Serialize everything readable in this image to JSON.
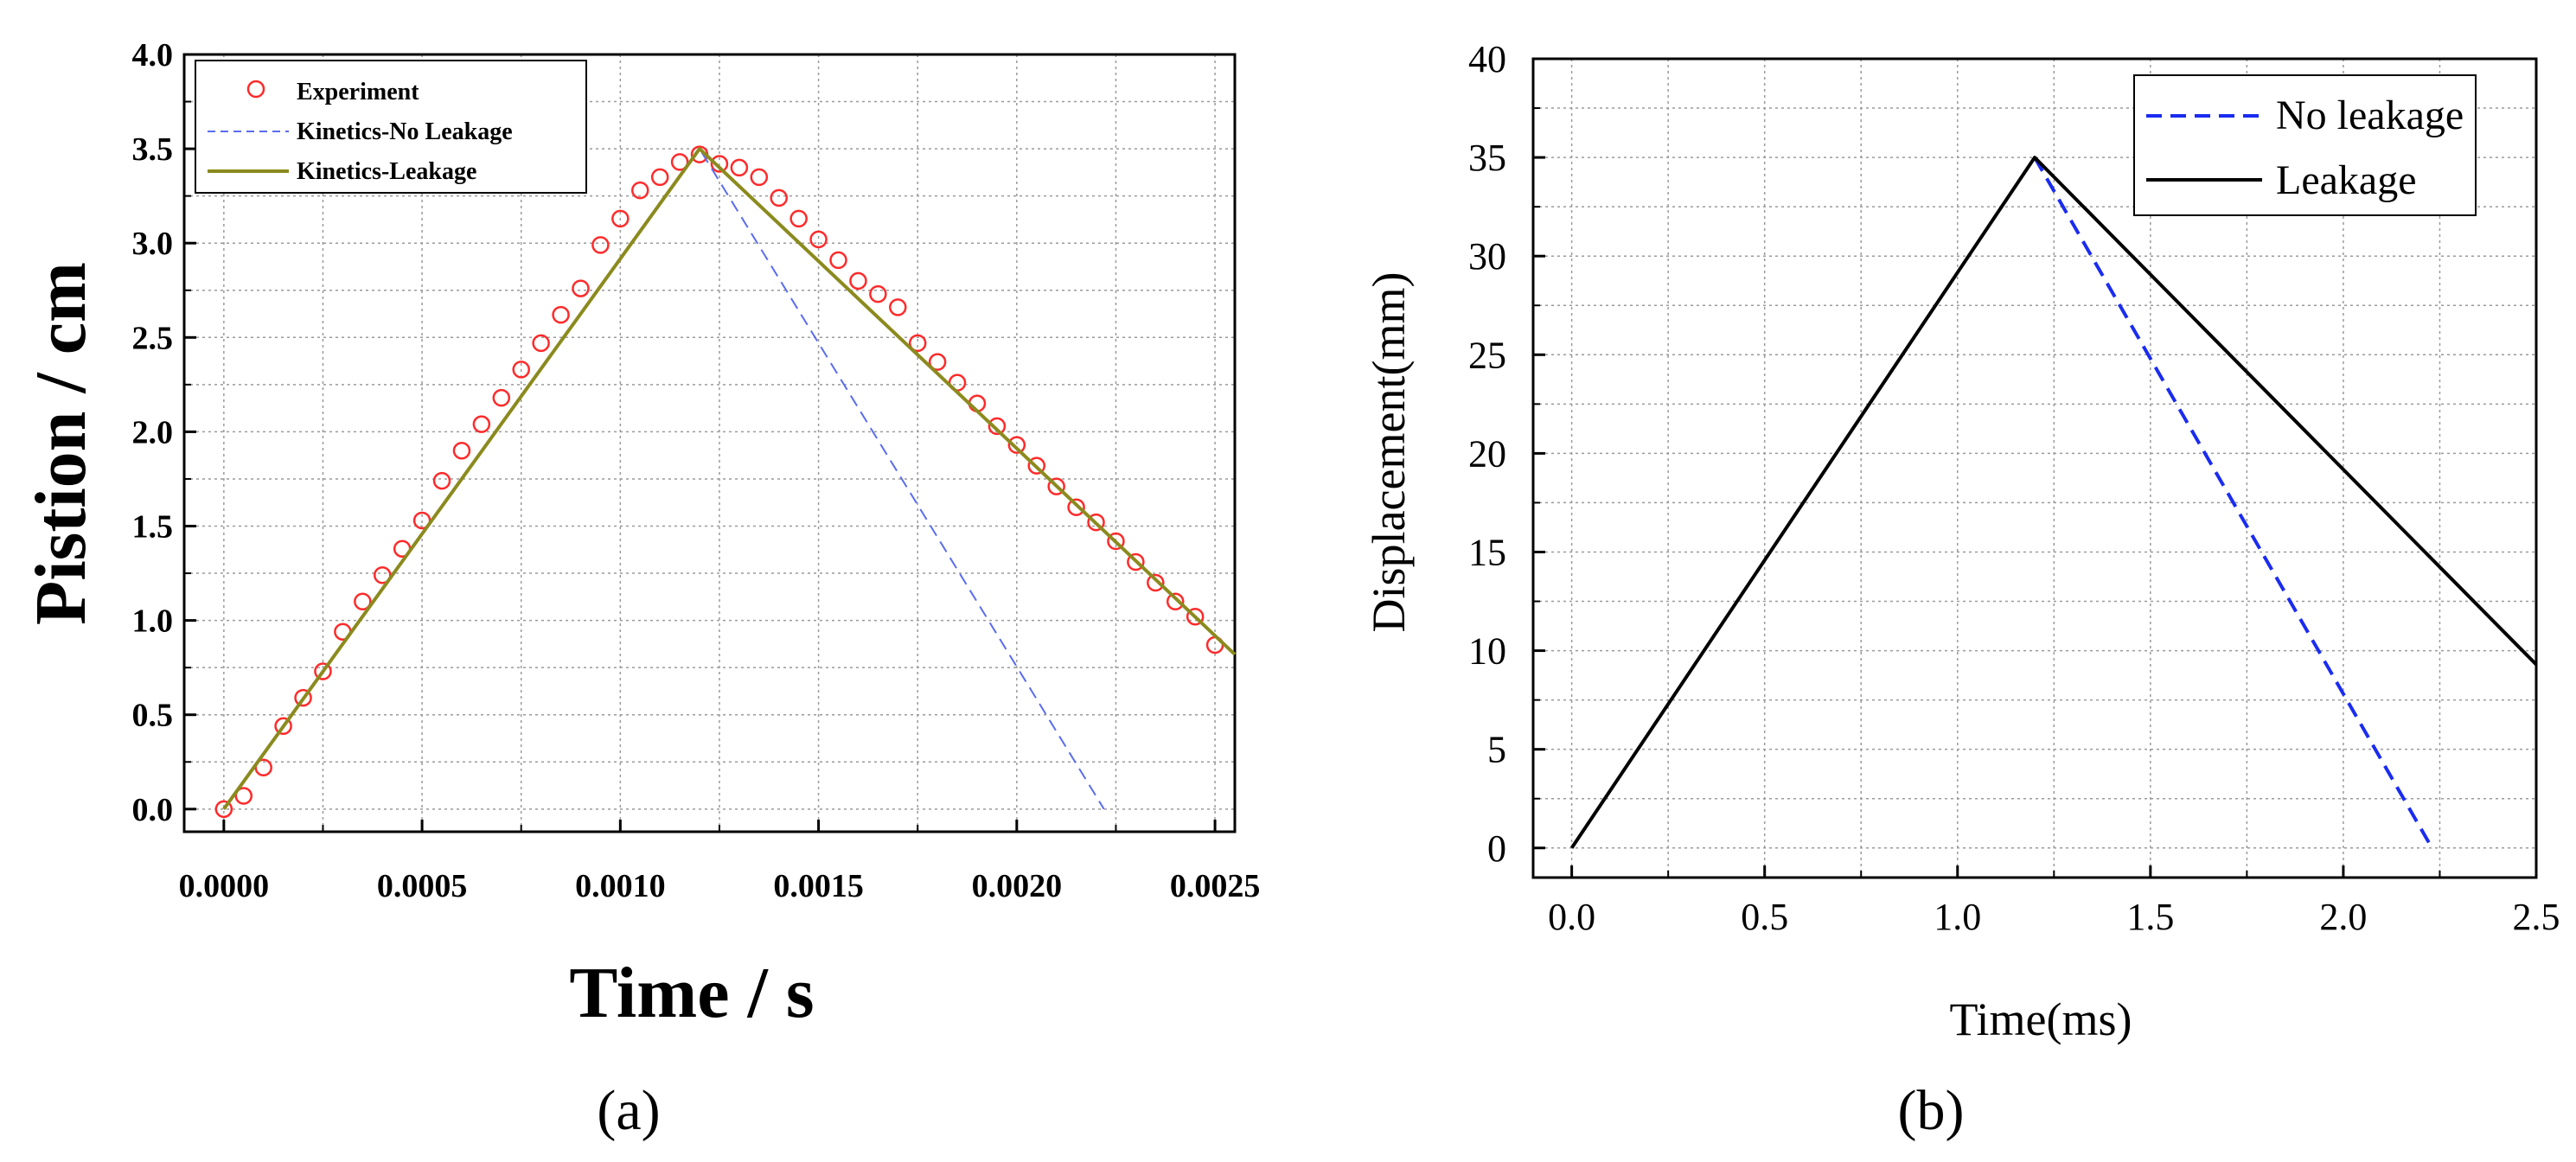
{
  "chart_data": [
    {
      "type": "line",
      "panel_label": "(a)",
      "xlabel": "Time / s",
      "ylabel": "Pistion / cm",
      "xlim": [
        -0.0001,
        0.00255
      ],
      "ylim": [
        -0.12,
        4.0
      ],
      "x_ticks": [
        0,
        0.0005,
        0.001,
        0.0015,
        0.002,
        0.0025
      ],
      "x_tick_labels": [
        "0.0000",
        "0.0005",
        "0.0010",
        "0.0015",
        "0.0020",
        "0.0025"
      ],
      "y_ticks": [
        0,
        0.5,
        1,
        1.5,
        2,
        2.5,
        3,
        3.5,
        4
      ],
      "y_tick_labels": [
        "0.0",
        "0.5",
        "1.0",
        "1.5",
        "2.0",
        "2.5",
        "3.0",
        "3.5",
        "4.0"
      ],
      "grid": true,
      "legend_position": "top-left",
      "series": [
        {
          "name": "Experiment",
          "style": "circles",
          "color": "#ff2a2a",
          "x": [
            0,
            5e-05,
            0.0001,
            0.00015,
            0.0002,
            0.00025,
            0.0003,
            0.00035,
            0.0004,
            0.00045,
            0.0005,
            0.00055,
            0.0006,
            0.00065,
            0.0007,
            0.00075,
            0.0008,
            0.00085,
            0.0009,
            0.00095,
            0.001,
            0.00105,
            0.0011,
            0.00115,
            0.0012,
            0.00125,
            0.0013,
            0.00135,
            0.0014,
            0.00145,
            0.0015,
            0.00155,
            0.0016,
            0.00165,
            0.0017,
            0.00175,
            0.0018,
            0.00185,
            0.0019,
            0.00195,
            0.002,
            0.00205,
            0.0021,
            0.00215,
            0.0022,
            0.00225,
            0.0023,
            0.00235,
            0.0024,
            0.00245,
            0.0025
          ],
          "y": [
            0.0,
            0.07,
            0.22,
            0.44,
            0.59,
            0.73,
            0.94,
            1.1,
            1.24,
            1.38,
            1.53,
            1.74,
            1.9,
            2.04,
            2.18,
            2.33,
            2.47,
            2.62,
            2.76,
            2.99,
            3.13,
            3.28,
            3.35,
            3.43,
            3.47,
            3.42,
            3.4,
            3.35,
            3.24,
            3.13,
            3.02,
            2.91,
            2.8,
            2.73,
            2.66,
            2.47,
            2.37,
            2.26,
            2.15,
            2.03,
            1.93,
            1.82,
            1.71,
            1.6,
            1.52,
            1.42,
            1.31,
            1.2,
            1.1,
            1.02,
            0.87
          ]
        },
        {
          "name": "Kinetics-No Leakage",
          "style": "dashed",
          "color": "#5a6cf0",
          "x": [
            0,
            0.0012,
            0.00222
          ],
          "y": [
            0.0,
            3.5,
            0.0
          ]
        },
        {
          "name": "Kinetics-Leakage",
          "style": "solid",
          "color": "#8b8a1e",
          "x": [
            0,
            0.0012,
            0.00255
          ],
          "y": [
            0.0,
            3.5,
            0.82
          ]
        }
      ]
    },
    {
      "type": "line",
      "panel_label": "(b)",
      "xlabel": "Time(ms)",
      "ylabel": "Displacement(mm)",
      "xlim": [
        -0.1,
        2.5
      ],
      "ylim": [
        -1.5,
        40
      ],
      "x_ticks": [
        0,
        0.5,
        1,
        1.5,
        2,
        2.5
      ],
      "x_tick_labels": [
        "0.0",
        "0.5",
        "1.0",
        "1.5",
        "2.0",
        "2.5"
      ],
      "y_ticks": [
        0,
        5,
        10,
        15,
        20,
        25,
        30,
        35,
        40
      ],
      "y_tick_labels": [
        "0",
        "5",
        "10",
        "15",
        "20",
        "25",
        "30",
        "35",
        "40"
      ],
      "grid": true,
      "legend_position": "top-right",
      "series": [
        {
          "name": "No leakage",
          "style": "dashed",
          "color": "#1a2cf0",
          "x": [
            1.2,
            2.23
          ],
          "y": [
            35.0,
            0.0
          ]
        },
        {
          "name": "Leakage",
          "style": "solid",
          "color": "#000000",
          "x": [
            0,
            1.2,
            2.5
          ],
          "y": [
            0.0,
            35.0,
            9.3
          ]
        }
      ]
    }
  ]
}
